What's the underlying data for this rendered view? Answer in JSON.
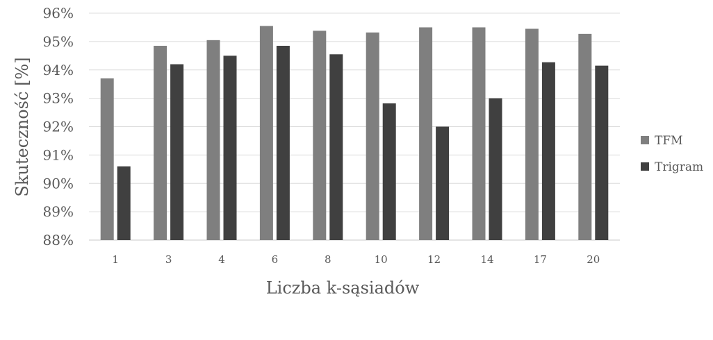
{
  "chart_data": {
    "type": "bar",
    "categories": [
      "1",
      "3",
      "4",
      "6",
      "8",
      "10",
      "12",
      "14",
      "17",
      "20"
    ],
    "series": [
      {
        "name": "TFM",
        "color": "#7f7f7f",
        "values": [
          93.7,
          94.85,
          95.05,
          95.55,
          95.38,
          95.32,
          95.5,
          95.5,
          95.45,
          95.27
        ]
      },
      {
        "name": "Trigram",
        "color": "#404040",
        "values": [
          90.6,
          94.2,
          94.5,
          94.85,
          94.55,
          92.82,
          92.0,
          93.0,
          94.27,
          94.15
        ]
      }
    ],
    "ylim": [
      88,
      96
    ],
    "yticks": [
      "88%",
      "89%",
      "90%",
      "91%",
      "92%",
      "93%",
      "94%",
      "95%",
      "96%"
    ],
    "xlabel": "Liczba k-sąsiadów",
    "ylabel": "Skuteczność [%]",
    "grid": true,
    "legend_position": "right"
  }
}
